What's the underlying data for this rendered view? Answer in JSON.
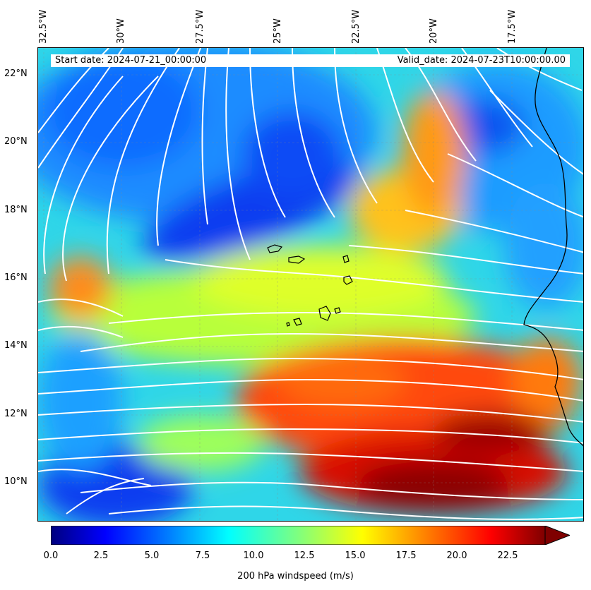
{
  "header": {
    "start_date": "Start date: 2024-07-21_00:00:00",
    "valid_date": "Valid_date: 2024-07-23T10:00:00.00"
  },
  "longitude_labels": [
    "32.5°W",
    "30°W",
    "27.5°W",
    "25°W",
    "22.5°W",
    "20°W",
    "17.5°W"
  ],
  "latitude_labels": [
    "22°N",
    "20°N",
    "18°N",
    "16°N",
    "14°N",
    "12°N",
    "10°N"
  ],
  "colorbar": {
    "ticks": [
      "0.0",
      "2.5",
      "5.0",
      "7.5",
      "10.0",
      "12.5",
      "15.0",
      "17.5",
      "20.0",
      "22.5"
    ],
    "label": "200 hPa windspeed (m/s)",
    "colormap": "jet",
    "extend": "max",
    "colors": [
      "#00007f",
      "#0000ff",
      "#007fff",
      "#00ffff",
      "#7fff7f",
      "#ffff00",
      "#ff7f00",
      "#ff0000",
      "#7f0000"
    ]
  },
  "map": {
    "lon_range": [
      -33,
      -15.5
    ],
    "lat_range": [
      8.8,
      22.8
    ],
    "streamline_color": "#ffffff",
    "coastline_color": "#000000",
    "features": [
      "Cape Verde islands",
      "West African coastline",
      "gridlines dashed"
    ]
  }
}
